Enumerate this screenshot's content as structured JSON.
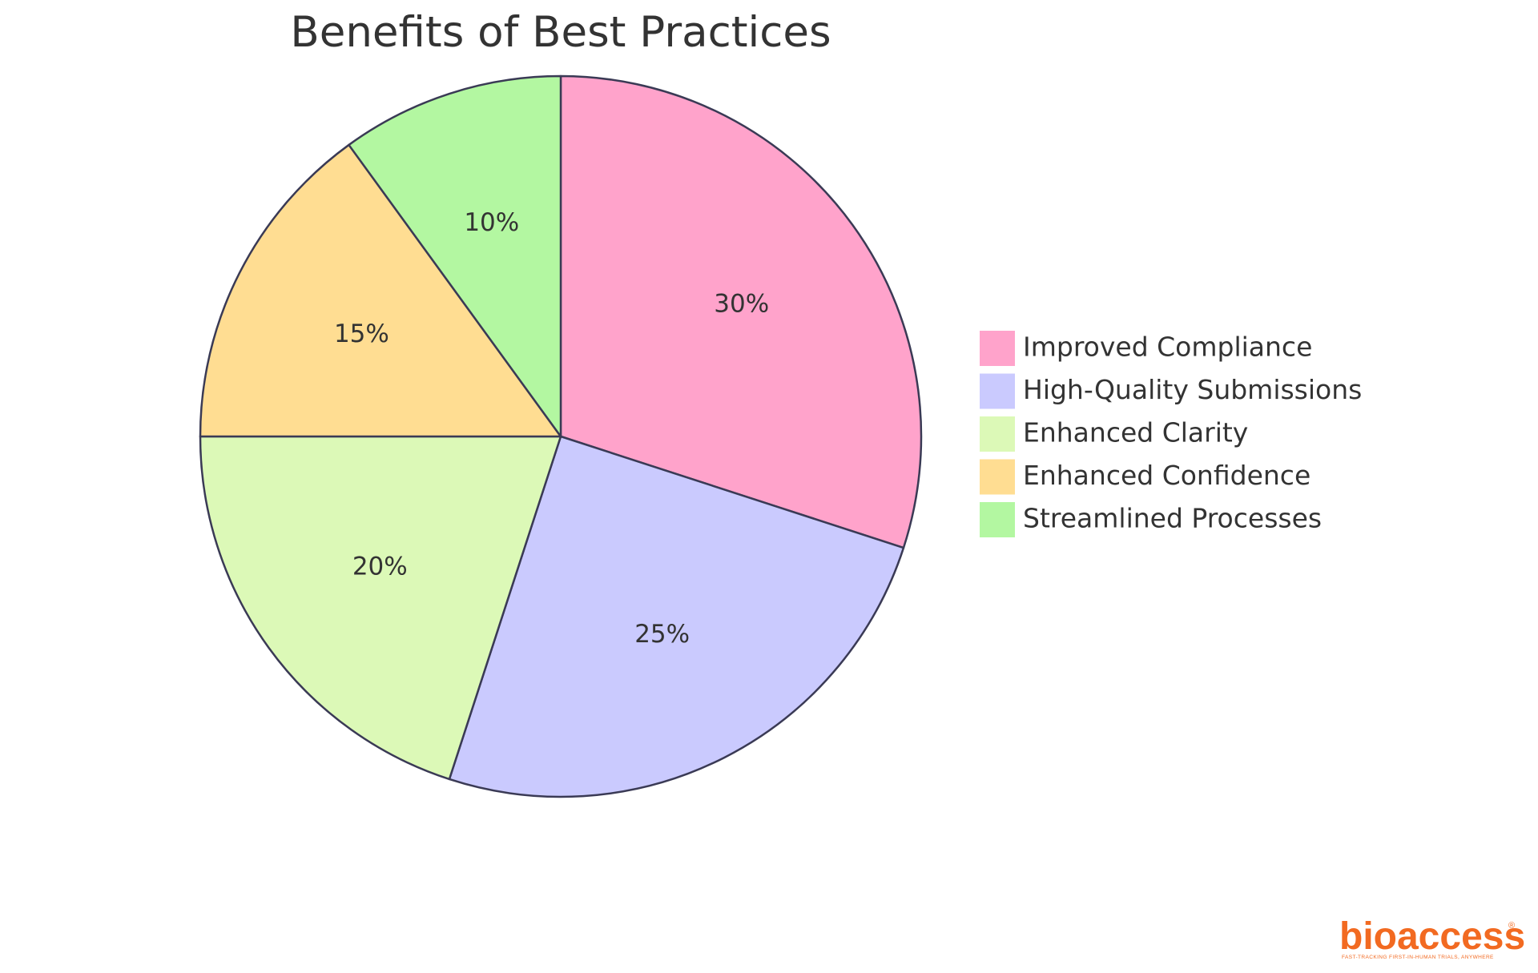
{
  "chart_data": {
    "type": "pie",
    "title": "Benefits of Best Practices",
    "slices": [
      {
        "label": "Improved Compliance",
        "value": 30,
        "display": "30%",
        "color": "#ffa3cb"
      },
      {
        "label": "High-Quality Submissions",
        "value": 25,
        "display": "25%",
        "color": "#cacafe"
      },
      {
        "label": "Enhanced Clarity",
        "value": 20,
        "display": "20%",
        "color": "#dcf9b7"
      },
      {
        "label": "Enhanced Confidence",
        "value": 15,
        "display": "15%",
        "color": "#ffdd92"
      },
      {
        "label": "Streamlined Processes",
        "value": 10,
        "display": "10%",
        "color": "#b3f7a1"
      }
    ],
    "start_angle_deg": 0,
    "direction": "clockwise",
    "legend_position": "right",
    "stroke_color": "#3a3a55"
  },
  "brand": {
    "name": "bioaccess",
    "registered_mark": "®",
    "tagline": "FAST-TRACKING FIRST-IN-HUMAN TRIALS, ANYWHERE",
    "color": "#f26a21"
  }
}
